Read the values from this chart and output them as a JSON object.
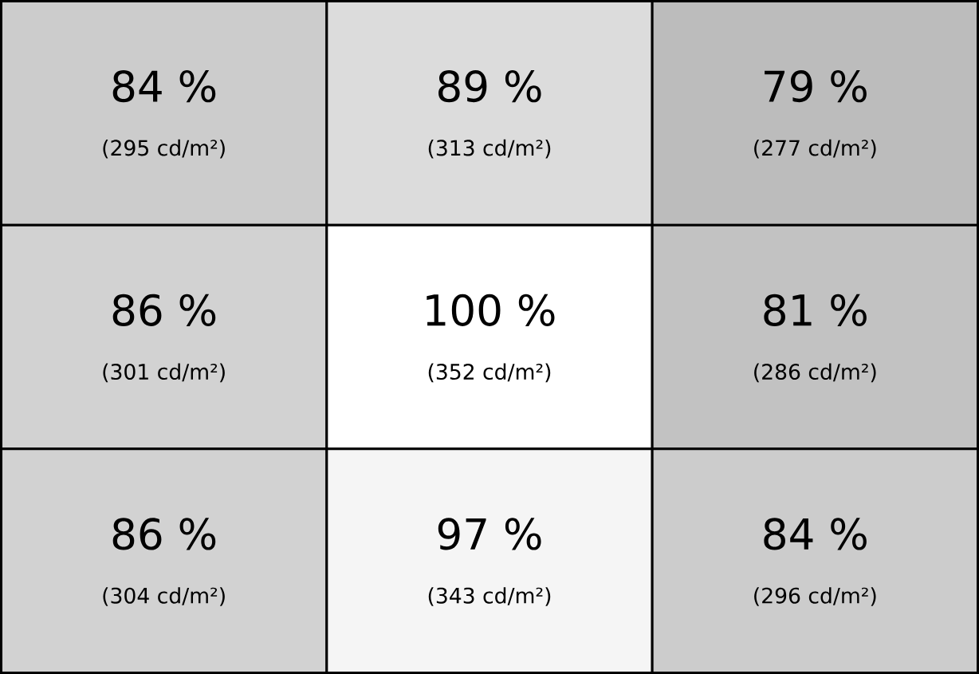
{
  "chart_data": {
    "type": "heatmap",
    "categories": [
      null,
      null,
      null
    ],
    "y_categories": [
      null,
      null,
      null
    ],
    "cells": [
      [
        84,
        89,
        79
      ],
      [
        86,
        100,
        81
      ],
      [
        86,
        97,
        84
      ]
    ],
    "cell_labels": [
      [
        "84 %",
        "89 %",
        "79 %"
      ],
      [
        "86 %",
        "100 %",
        "81 %"
      ],
      [
        "86 %",
        "97 %",
        "84 %"
      ]
    ],
    "annotations": [
      "(295 cd/m²)",
      "(313 cd/m²)",
      "(277 cd/m²)",
      "(301 cd/m²)",
      "(352 cd/m²)",
      "(286 cd/m²)",
      "(304 cd/m²)",
      "(343 cd/m²)",
      "(296 cd/m²)"
    ]
  }
}
